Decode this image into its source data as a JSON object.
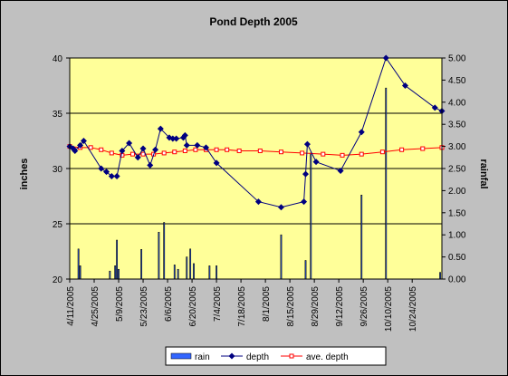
{
  "chart_data": {
    "type": "line",
    "title": "Pond Depth 2005",
    "ylabel": "inches",
    "y2label": "rainfal",
    "ylim": [
      20,
      40
    ],
    "y2lim": [
      0,
      5
    ],
    "yticks": [
      "20",
      "25",
      "30",
      "35",
      "40"
    ],
    "y2ticks": [
      "0.00",
      "0.50",
      "1.00",
      "1.50",
      "2.00",
      "2.50",
      "3.00",
      "3.50",
      "4.00",
      "4.50",
      "5.00"
    ],
    "xlim": [
      "2005-04-11",
      "2005-11-10"
    ],
    "xticks": [
      "4/11/2005",
      "4/25/2005",
      "5/9/2005",
      "5/23/2005",
      "6/6/2005",
      "6/20/2005",
      "7/4/2005",
      "7/18/2005",
      "8/1/2005",
      "8/15/2005",
      "8/29/2005",
      "9/12/2005",
      "9/26/2005",
      "10/10/2005",
      "10/24/2005"
    ],
    "grid": true,
    "legend": "bottom",
    "colors": {
      "plot_bg": "#ffff99",
      "rain": "#3366ff",
      "depth": "#000080",
      "ave_depth": "#ff0000",
      "frame": "#c0c0c0"
    },
    "series": [
      {
        "name": "rain",
        "kind": "bar",
        "axis": "right",
        "points": [
          [
            "2005-04-16",
            0.68
          ],
          [
            "2005-04-17",
            0.3
          ],
          [
            "2005-05-04",
            0.18
          ],
          [
            "2005-05-07",
            0.3
          ],
          [
            "2005-05-08",
            0.88
          ],
          [
            "2005-05-09",
            0.22
          ],
          [
            "2005-05-22",
            0.67
          ],
          [
            "2005-06-01",
            1.06
          ],
          [
            "2005-06-04",
            1.28
          ],
          [
            "2005-06-10",
            0.32
          ],
          [
            "2005-06-12",
            0.22
          ],
          [
            "2005-06-17",
            0.5
          ],
          [
            "2005-06-19",
            0.68
          ],
          [
            "2005-06-21",
            0.35
          ],
          [
            "2005-06-30",
            0.3
          ],
          [
            "2005-07-04",
            0.3
          ],
          [
            "2005-08-10",
            1.0
          ],
          [
            "2005-08-24",
            0.42
          ],
          [
            "2005-08-27",
            2.85
          ],
          [
            "2005-09-25",
            1.9
          ],
          [
            "2005-10-09",
            4.32
          ],
          [
            "2005-11-09",
            0.15
          ]
        ]
      },
      {
        "name": "depth",
        "kind": "line",
        "axis": "left",
        "points": [
          [
            "2005-04-11",
            32.0
          ],
          [
            "2005-04-13",
            31.8
          ],
          [
            "2005-04-14",
            31.6
          ],
          [
            "2005-04-17",
            32.1
          ],
          [
            "2005-04-19",
            32.5
          ],
          [
            "2005-04-29",
            30.0
          ],
          [
            "2005-05-02",
            29.7
          ],
          [
            "2005-05-05",
            29.3
          ],
          [
            "2005-05-08",
            29.3
          ],
          [
            "2005-05-11",
            31.6
          ],
          [
            "2005-05-15",
            32.3
          ],
          [
            "2005-05-20",
            31.0
          ],
          [
            "2005-05-23",
            31.8
          ],
          [
            "2005-05-27",
            30.3
          ],
          [
            "2005-05-30",
            31.7
          ],
          [
            "2005-06-02",
            33.6
          ],
          [
            "2005-06-07",
            32.8
          ],
          [
            "2005-06-09",
            32.7
          ],
          [
            "2005-06-11",
            32.7
          ],
          [
            "2005-06-15",
            32.8
          ],
          [
            "2005-06-16",
            33.0
          ],
          [
            "2005-06-17",
            32.1
          ],
          [
            "2005-06-23",
            32.1
          ],
          [
            "2005-06-28",
            31.9
          ],
          [
            "2005-07-04",
            30.5
          ],
          [
            "2005-07-28",
            27.0
          ],
          [
            "2005-08-10",
            26.5
          ],
          [
            "2005-08-23",
            27.0
          ],
          [
            "2005-08-24",
            29.5
          ],
          [
            "2005-08-25",
            32.2
          ],
          [
            "2005-08-30",
            30.6
          ],
          [
            "2005-09-13",
            29.8
          ],
          [
            "2005-09-25",
            33.3
          ],
          [
            "2005-10-09",
            40.0
          ],
          [
            "2005-10-20",
            37.5
          ],
          [
            "2005-11-06",
            35.5
          ],
          [
            "2005-11-10",
            35.2
          ]
        ]
      },
      {
        "name": "ave. depth",
        "kind": "line",
        "axis": "left",
        "points": [
          [
            "2005-04-11",
            32.0
          ],
          [
            "2005-04-17",
            31.9
          ],
          [
            "2005-04-23",
            31.9
          ],
          [
            "2005-04-29",
            31.7
          ],
          [
            "2005-05-05",
            31.4
          ],
          [
            "2005-05-11",
            31.2
          ],
          [
            "2005-05-17",
            31.3
          ],
          [
            "2005-05-23",
            31.3
          ],
          [
            "2005-05-29",
            31.3
          ],
          [
            "2005-06-04",
            31.4
          ],
          [
            "2005-06-10",
            31.5
          ],
          [
            "2005-06-16",
            31.6
          ],
          [
            "2005-06-22",
            31.7
          ],
          [
            "2005-06-28",
            31.7
          ],
          [
            "2005-07-04",
            31.7
          ],
          [
            "2005-07-10",
            31.7
          ],
          [
            "2005-07-17",
            31.6
          ],
          [
            "2005-07-29",
            31.6
          ],
          [
            "2005-08-10",
            31.5
          ],
          [
            "2005-08-22",
            31.4
          ],
          [
            "2005-09-03",
            31.3
          ],
          [
            "2005-09-14",
            31.2
          ],
          [
            "2005-09-25",
            31.3
          ],
          [
            "2005-10-07",
            31.5
          ],
          [
            "2005-10-18",
            31.7
          ],
          [
            "2005-10-30",
            31.8
          ],
          [
            "2005-11-10",
            31.9
          ]
        ]
      }
    ]
  }
}
